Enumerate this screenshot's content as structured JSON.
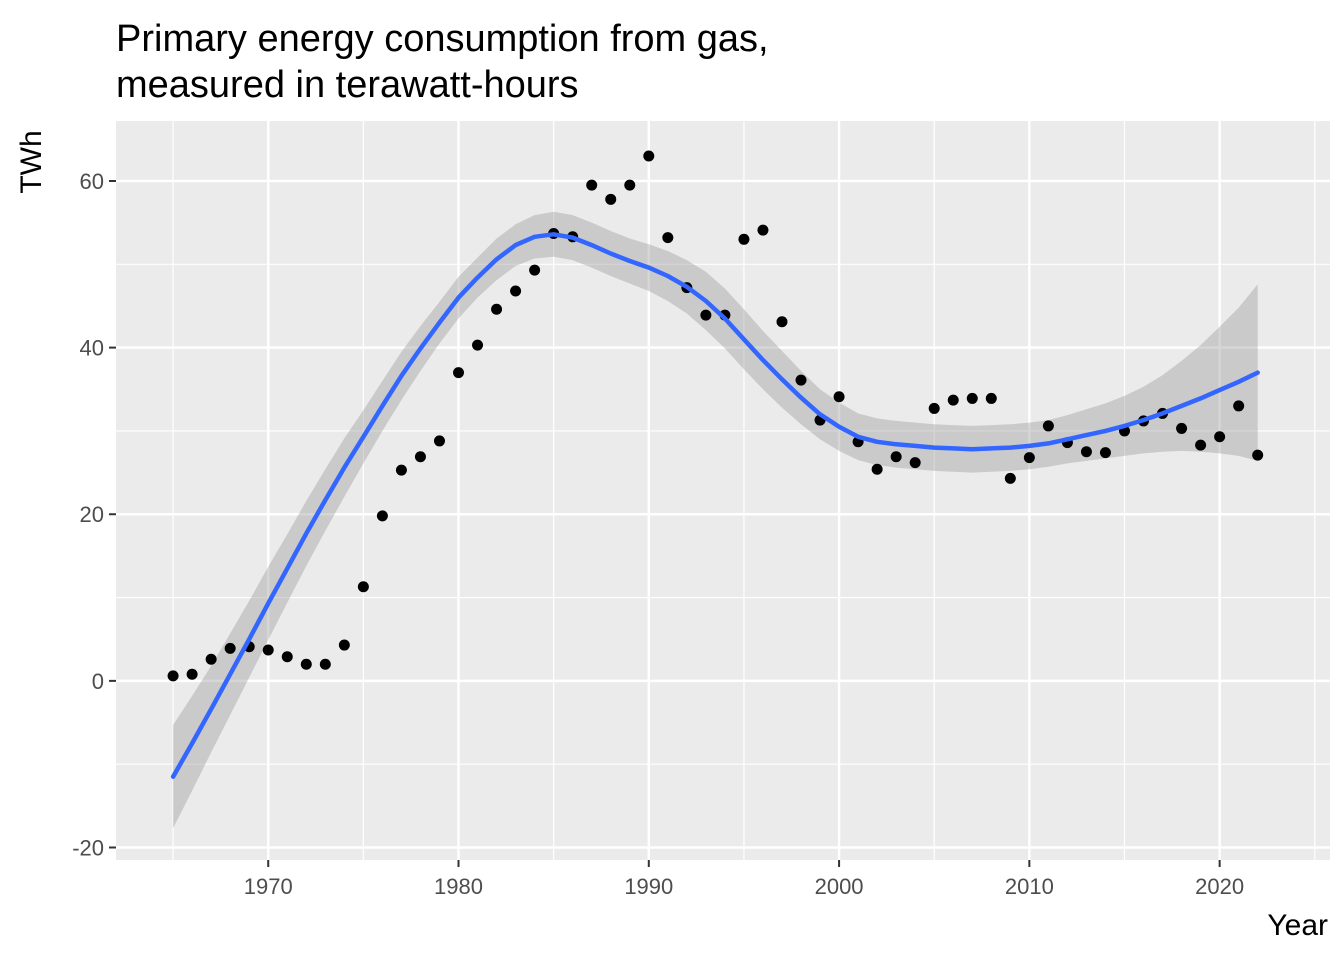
{
  "chart_data": {
    "type": "scatter",
    "title_lines": [
      "Primary energy consumption from gas,",
      "measured in terawatt-hours"
    ],
    "xlabel": "Year",
    "ylabel": "TWh",
    "xlim": [
      1962,
      2025.8
    ],
    "ylim": [
      -21.5,
      67.2
    ],
    "x_ticks": [
      1970,
      1980,
      1990,
      2000,
      2010,
      2020
    ],
    "x_tick_labels": [
      "1970",
      "1980",
      "1990",
      "2000",
      "2010",
      "2020"
    ],
    "x_minor_ticks": [
      1965,
      1975,
      1985,
      1995,
      2005,
      2015,
      2025
    ],
    "y_ticks": [
      -20,
      0,
      20,
      40,
      60
    ],
    "y_tick_labels": [
      "-20",
      "0",
      "20",
      "40",
      "60"
    ],
    "y_minor_ticks": [
      -10,
      10,
      30,
      50
    ],
    "grid": true,
    "colors": {
      "panel_background": "#EBEBEB",
      "grid": "#FFFFFF",
      "points": "#000000",
      "smooth_line": "#3366FF",
      "confidence_band": "#999999"
    },
    "series": [
      {
        "kind": "points",
        "x": [
          1965,
          1966,
          1967,
          1968,
          1969,
          1970,
          1971,
          1972,
          1973,
          1974,
          1975,
          1976,
          1977,
          1978,
          1979,
          1980,
          1981,
          1982,
          1983,
          1984,
          1985,
          1986,
          1987,
          1988,
          1989,
          1990,
          1991,
          1992,
          1993,
          1994,
          1995,
          1996,
          1997,
          1998,
          1999,
          2000,
          2001,
          2002,
          2003,
          2004,
          2005,
          2006,
          2007,
          2008,
          2009,
          2010,
          2011,
          2012,
          2013,
          2014,
          2015,
          2016,
          2017,
          2018,
          2019,
          2020,
          2021,
          2022
        ],
        "y": [
          0.6,
          0.8,
          2.6,
          3.9,
          4.1,
          3.7,
          2.9,
          2.0,
          2.0,
          4.3,
          11.3,
          19.8,
          25.3,
          26.9,
          28.8,
          37.0,
          40.3,
          44.6,
          46.8,
          49.3,
          53.7,
          53.3,
          59.5,
          57.8,
          59.5,
          63.0,
          53.2,
          47.2,
          43.9,
          43.9,
          53.0,
          54.1,
          43.1,
          36.1,
          31.3,
          34.1,
          28.7,
          25.4,
          26.9,
          26.2,
          32.7,
          33.7,
          33.9,
          33.9,
          24.3,
          26.8,
          30.6,
          28.6,
          27.5,
          27.4,
          30.0,
          31.2,
          32.1,
          30.3,
          28.3,
          29.3,
          33.0,
          27.1
        ]
      },
      {
        "kind": "smooth",
        "x": [
          1965,
          1966,
          1967,
          1968,
          1969,
          1970,
          1971,
          1972,
          1973,
          1974,
          1975,
          1976,
          1977,
          1978,
          1979,
          1980,
          1981,
          1982,
          1983,
          1984,
          1985,
          1986,
          1987,
          1988,
          1989,
          1990,
          1991,
          1992,
          1993,
          1994,
          1995,
          1996,
          1997,
          1998,
          1999,
          2000,
          2001,
          2002,
          2003,
          2004,
          2005,
          2006,
          2007,
          2008,
          2009,
          2010,
          2011,
          2012,
          2013,
          2014,
          2015,
          2016,
          2017,
          2018,
          2019,
          2020,
          2021,
          2022
        ],
        "y": [
          -11.5,
          -7.5,
          -3.4,
          0.8,
          5.0,
          9.3,
          13.5,
          17.7,
          21.7,
          25.6,
          29.3,
          33.0,
          36.6,
          39.9,
          43.0,
          46.0,
          48.4,
          50.6,
          52.3,
          53.3,
          53.6,
          53.2,
          52.3,
          51.3,
          50.4,
          49.6,
          48.6,
          47.3,
          45.6,
          43.5,
          41.0,
          38.5,
          36.2,
          34.0,
          32.0,
          30.5,
          29.3,
          28.7,
          28.4,
          28.2,
          28.0,
          27.9,
          27.8,
          27.9,
          28.0,
          28.2,
          28.5,
          29.0,
          29.5,
          30.0,
          30.6,
          31.3,
          32.1,
          33.0,
          33.9,
          34.9,
          35.9,
          37.0
        ],
        "band_lower": [
          -17.7,
          -13.2,
          -8.6,
          -4.1,
          0.4,
          4.9,
          9.4,
          13.8,
          18.0,
          22.1,
          26.1,
          30.0,
          33.7,
          37.2,
          40.5,
          43.5,
          46.0,
          48.1,
          49.8,
          50.7,
          50.9,
          50.5,
          49.6,
          48.6,
          47.7,
          46.8,
          45.6,
          44.1,
          42.1,
          39.9,
          37.4,
          35.0,
          32.8,
          30.8,
          29.0,
          27.6,
          26.5,
          25.9,
          25.6,
          25.4,
          25.2,
          25.1,
          25.0,
          25.1,
          25.2,
          25.4,
          25.7,
          26.1,
          26.4,
          26.7,
          27.0,
          27.3,
          27.5,
          27.6,
          27.5,
          27.3,
          27.0,
          26.4
        ],
        "band_upper": [
          -5.3,
          -1.8,
          1.8,
          5.7,
          9.6,
          13.7,
          17.6,
          21.6,
          25.4,
          29.1,
          32.5,
          36.0,
          39.5,
          42.6,
          45.5,
          48.5,
          50.8,
          53.1,
          54.8,
          55.9,
          56.3,
          55.9,
          55.0,
          54.0,
          53.1,
          52.4,
          51.6,
          50.5,
          49.1,
          47.1,
          44.6,
          42.0,
          39.6,
          37.2,
          35.0,
          33.4,
          32.1,
          31.5,
          31.2,
          31.0,
          30.8,
          30.7,
          30.6,
          30.7,
          30.8,
          31.0,
          31.3,
          31.9,
          32.6,
          33.3,
          34.2,
          35.3,
          36.7,
          38.4,
          40.3,
          42.5,
          44.8,
          47.6
        ]
      }
    ]
  }
}
